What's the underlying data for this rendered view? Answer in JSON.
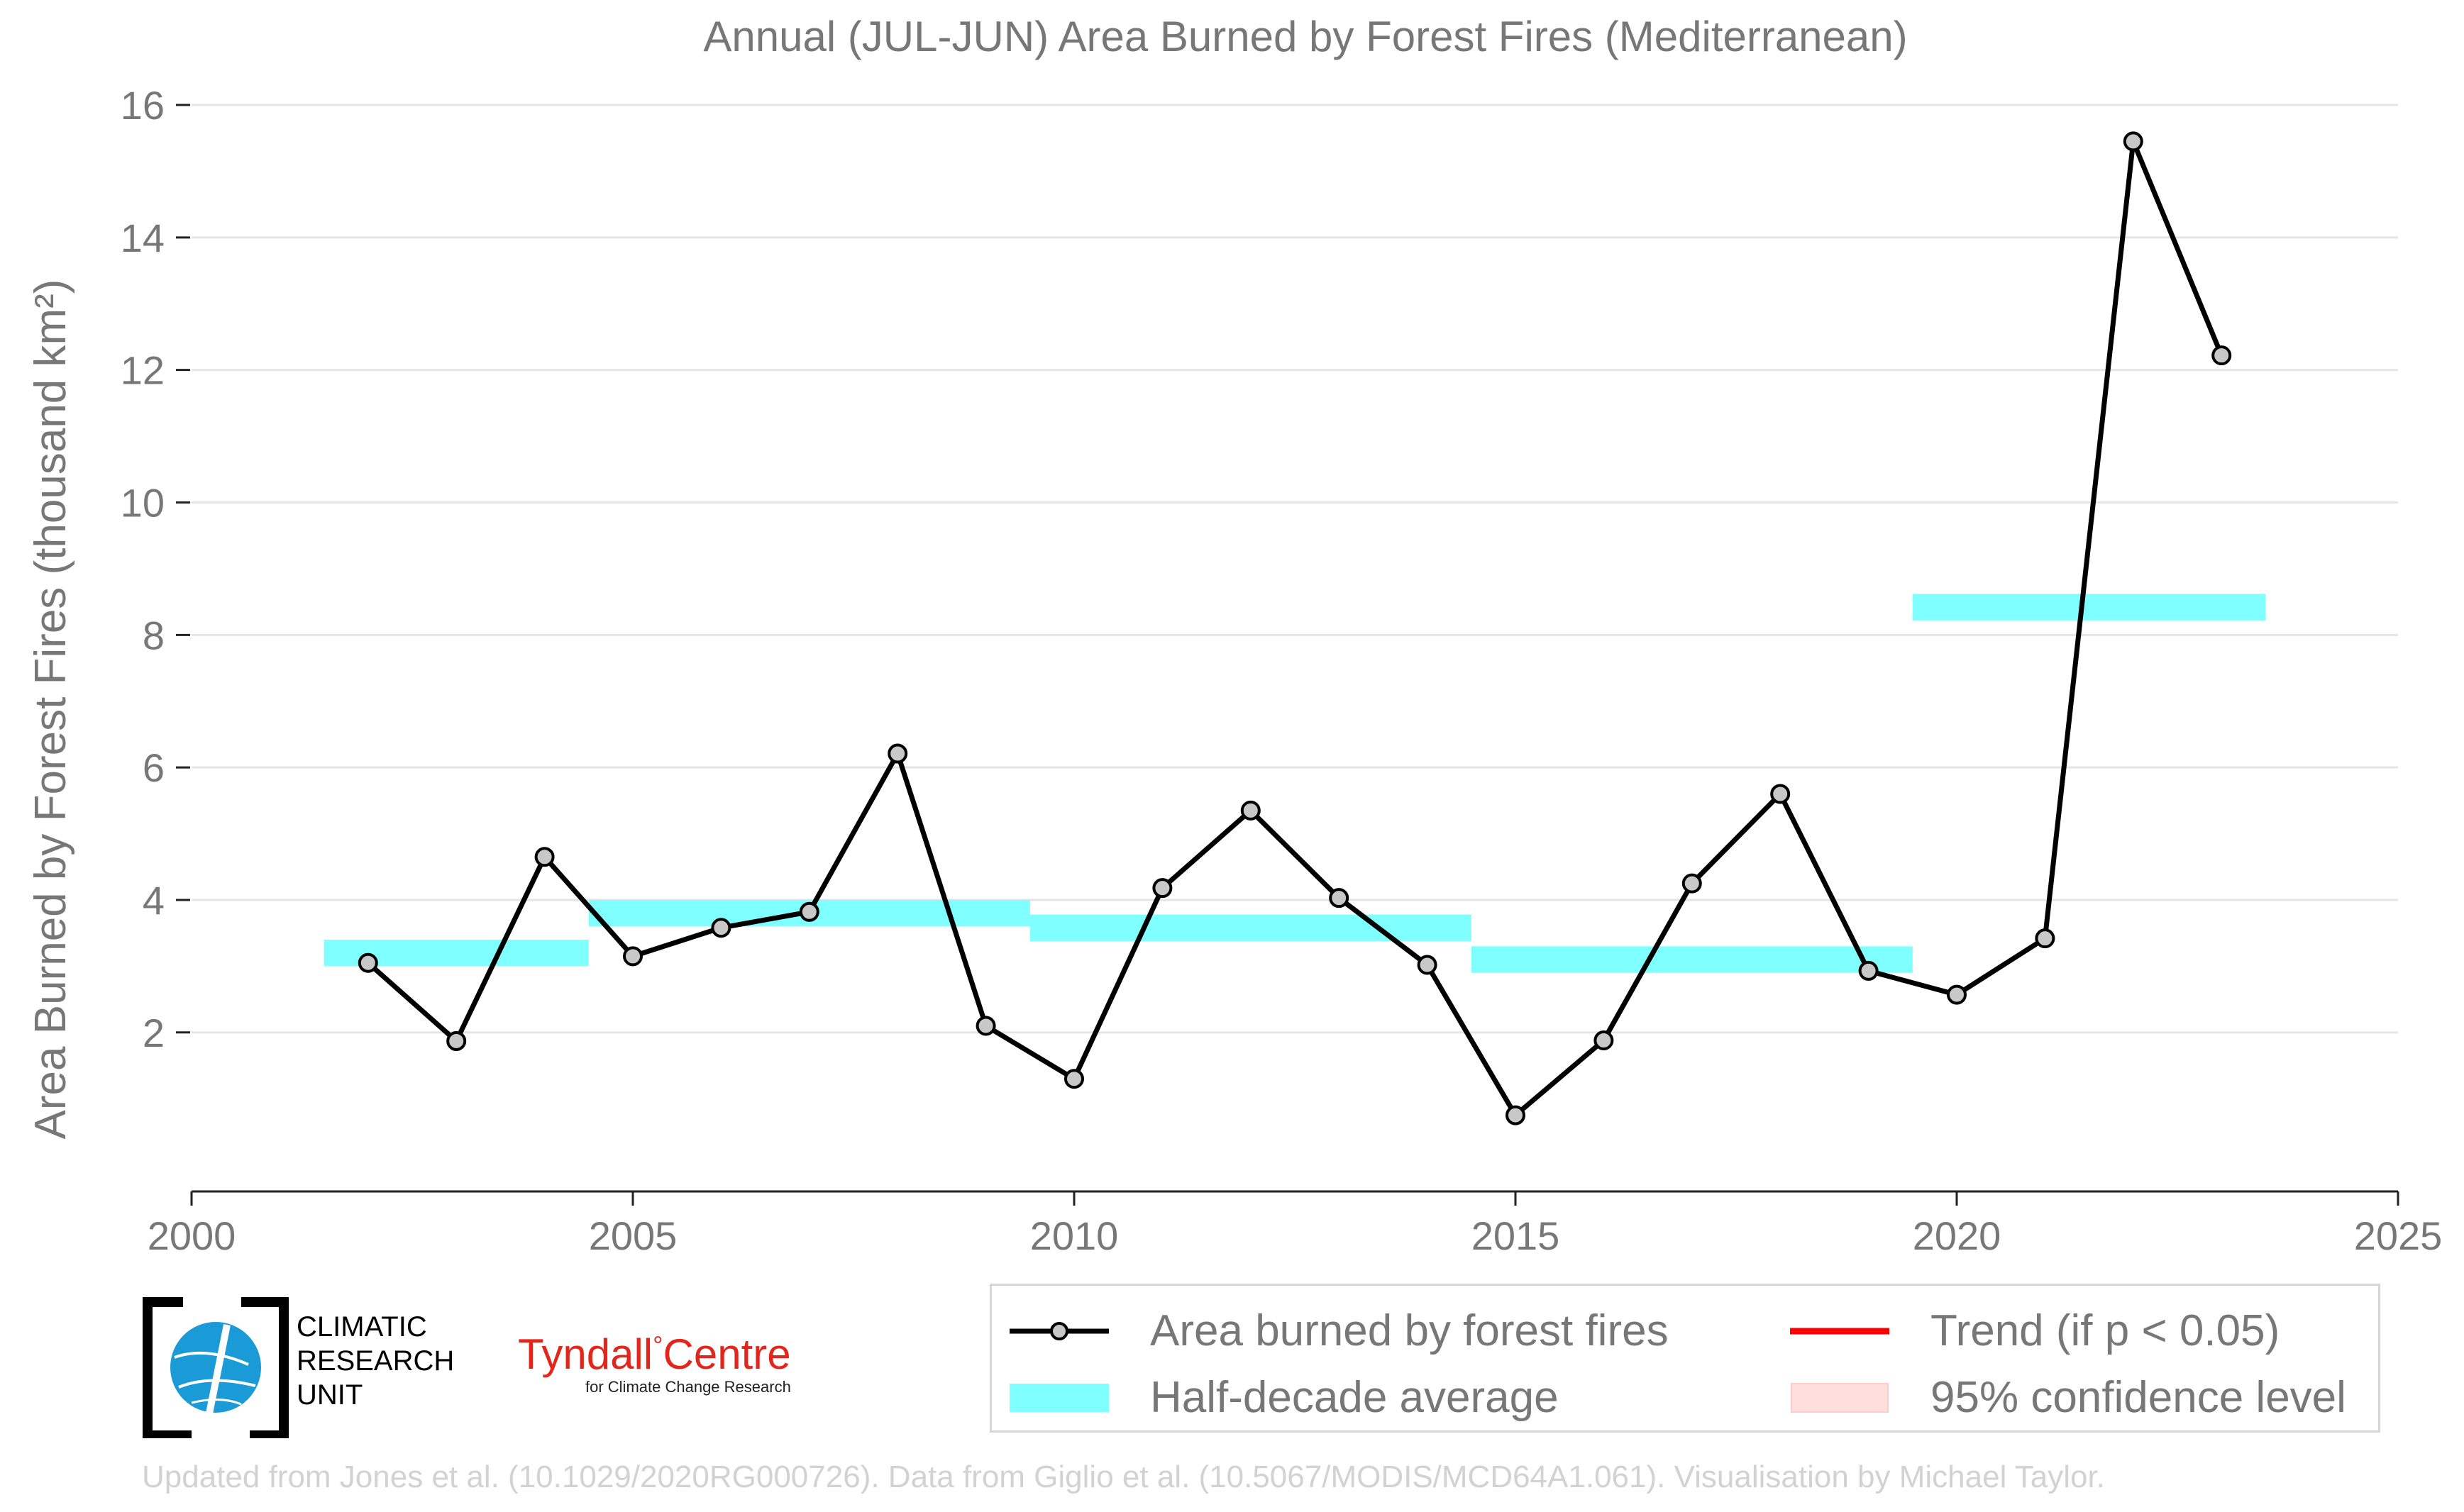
{
  "chart_data": {
    "type": "line",
    "title": "Annual (JUL-JUN) Area Burned by Forest Fires (Mediterranean)",
    "ylabel": "Area Burned by Forest Fires (thousand km²)",
    "xlabel": "",
    "xlim": [
      2000,
      2025
    ],
    "ylim": [
      -0.4,
      16.3
    ],
    "x_ticks": [
      2000,
      2005,
      2010,
      2015,
      2020,
      2025
    ],
    "y_ticks": [
      2,
      4,
      6,
      8,
      10,
      12,
      14,
      16
    ],
    "grid": "horizontal",
    "legend_position": "bottom",
    "series": [
      {
        "name": "Area burned by forest fires",
        "color": "#000000",
        "marker_fill": "#c8c8c8",
        "x": [
          2002,
          2003,
          2004,
          2005,
          2006,
          2007,
          2008,
          2009,
          2010,
          2011,
          2012,
          2013,
          2014,
          2015,
          2016,
          2017,
          2018,
          2019,
          2020,
          2021,
          2022,
          2023
        ],
        "values": [
          3.05,
          1.87,
          4.65,
          3.15,
          3.58,
          3.82,
          6.21,
          2.1,
          1.3,
          4.18,
          5.35,
          4.03,
          3.02,
          0.75,
          1.88,
          4.25,
          5.6,
          2.93,
          2.57,
          3.42,
          15.45,
          12.22
        ]
      }
    ],
    "half_decade_average": {
      "name": "Half-decade average",
      "color": "#7fffff",
      "segments": [
        {
          "x_start": 2001.5,
          "x_end": 2004.5,
          "value": 3.2
        },
        {
          "x_start": 2004.5,
          "x_end": 2009.5,
          "value": 3.8
        },
        {
          "x_start": 2009.5,
          "x_end": 2014.5,
          "value": 3.58
        },
        {
          "x_start": 2014.5,
          "x_end": 2019.5,
          "value": 3.1
        },
        {
          "x_start": 2019.5,
          "x_end": 2023.5,
          "value": 8.42
        }
      ]
    }
  },
  "legend": {
    "items": [
      {
        "label": "Area burned by forest fires",
        "kind": "line-marker",
        "color": "#000000"
      },
      {
        "label": "Trend (if p < 0.05)",
        "kind": "line",
        "color": "#ff0000"
      },
      {
        "label": "Half-decade average",
        "kind": "band",
        "color": "#7fffff"
      },
      {
        "label": "95% confidence level",
        "kind": "patch",
        "color": "#ffdede"
      }
    ]
  },
  "logos": {
    "cru": [
      "CLIMATIC",
      "RESEARCH",
      "UNIT"
    ],
    "tyndall_name_a": "Tyndall",
    "tyndall_degree": "°",
    "tyndall_name_b": "Centre",
    "tyndall_sub": "for Climate Change Research"
  },
  "credit": "Updated from Jones et al. (10.1029/2020RG000726). Data from Giglio et al. (10.5067/MODIS/MCD64A1.061). Visualisation by Michael Taylor.",
  "colors": {
    "text_gray": "#777777",
    "grid": "#e5e5e5",
    "axis": "#222222",
    "cru_blue": "#1a9bd7"
  }
}
